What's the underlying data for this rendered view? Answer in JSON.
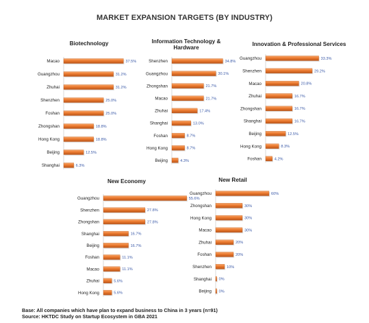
{
  "title": "MARKET EXPANSION TARGETS (BY INDUSTRY)",
  "footer": {
    "base": "Base: All companies which have plan to expand business to China in 3 years (n=91)",
    "source": "Source: HKTDC Study on Startup Ecosystem in GBA 2021"
  },
  "colors": {
    "bar": "#ec7a2f",
    "bar_dark": "#b8551a",
    "bar_light": "#f6a86d",
    "value_label": "#3b5aa8"
  },
  "chart_data": [
    {
      "type": "bar",
      "orientation": "horizontal",
      "title": "Biotechnology",
      "categories": [
        "Macao",
        "Guangzhou",
        "Zhuhai",
        "Shenzhen",
        "Foshan",
        "Zhongshan",
        "Hong Kong",
        "Beijing",
        "Shanghai"
      ],
      "values": [
        37.5,
        31.2,
        31.2,
        25.0,
        25.0,
        18.8,
        18.8,
        12.5,
        6.3
      ],
      "labels": [
        "37.5%",
        "31.2%",
        "31.2%",
        "25.0%",
        "25.0%",
        "18.8%",
        "18.8%",
        "12.5%",
        "6.3%"
      ]
    },
    {
      "type": "bar",
      "orientation": "horizontal",
      "title_lines": [
        "Information Technology &",
        "Hardware"
      ],
      "categories": [
        "Shenzhen",
        "Guangzhou",
        "Zhongshan",
        "Macao",
        "Zhuhai",
        "Shanghai",
        "Foshan",
        "Hong Kong",
        "Beijing"
      ],
      "values": [
        34.8,
        30.1,
        21.7,
        21.7,
        17.4,
        13.0,
        8.7,
        8.7,
        4.3
      ],
      "labels": [
        "34.8%",
        "30.1%",
        "21.7%",
        "21.7%",
        "17.4%",
        "13.0%",
        "8.7%",
        "8.7%",
        "4.3%"
      ]
    },
    {
      "type": "bar",
      "orientation": "horizontal",
      "title": "Innovation & Professional Services",
      "categories": [
        "Guangzhou",
        "Shenzhen",
        "Macao",
        "Zhuhai",
        "Zhongshan",
        "Shanghai",
        "Beijing",
        "Hong Kong",
        "Foshan"
      ],
      "values": [
        33.3,
        29.2,
        20.8,
        16.7,
        16.7,
        16.7,
        12.5,
        8.3,
        4.2
      ],
      "labels": [
        "33.3%",
        "29.2%",
        "20.8%",
        "16.7%",
        "16.7%",
        "16.7%",
        "12.5%",
        "8.3%",
        "4.2%"
      ]
    },
    {
      "type": "bar",
      "orientation": "horizontal",
      "title": "New Economy",
      "categories": [
        "Guangzhou",
        "Shenzhen",
        "Zhongshan",
        "Shanghai",
        "Beijing",
        "Foshan",
        "Macao",
        "Zhuhai",
        "Hong Kong"
      ],
      "values": [
        55.6,
        27.8,
        27.8,
        16.7,
        16.7,
        11.1,
        11.1,
        5.6,
        5.6
      ],
      "labels": [
        "55.6%",
        "27.8%",
        "27.8%",
        "16.7%",
        "16.7%",
        "11.1%",
        "11.1%",
        "5.6%",
        "5.6%"
      ]
    },
    {
      "type": "bar",
      "orientation": "horizontal",
      "title": "New Retail",
      "categories": [
        "Guangzhou",
        "Zhongshan",
        "Hong Kong",
        "Macao",
        "Zhuhai",
        "Foshan",
        "Shenzhen",
        "Shanghai",
        "Beijing"
      ],
      "values": [
        60,
        30,
        30,
        30,
        20,
        20,
        10,
        0,
        0
      ],
      "labels": [
        "60%",
        "30%",
        "30%",
        "30%",
        "20%",
        "20%",
        "10%",
        "0%",
        "0%"
      ]
    }
  ]
}
